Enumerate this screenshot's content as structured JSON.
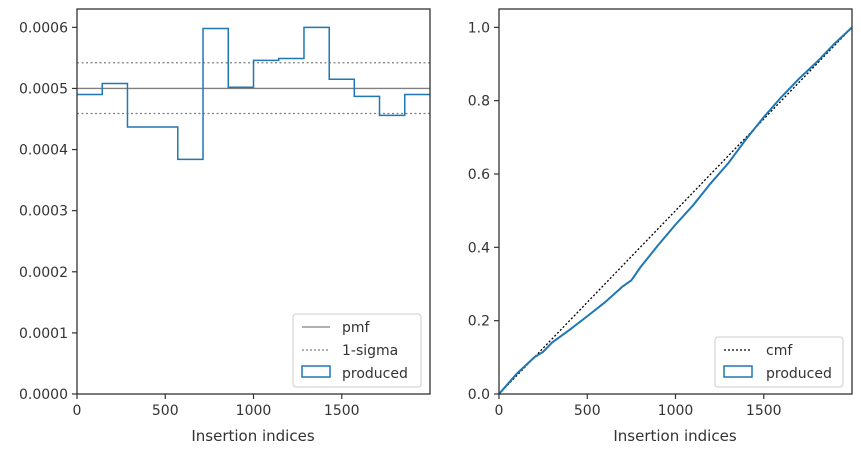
{
  "colors": {
    "produced": "#1f77b4",
    "pmf": "#808080",
    "sigma": "#808080",
    "cmf": "#000000",
    "axes": "#333333"
  },
  "chart_data": [
    {
      "type": "step",
      "xlabel": "Insertion indices",
      "ylabel": "",
      "xlim": [
        0,
        2000
      ],
      "ylim": [
        0,
        0.00063
      ],
      "xticks": [
        0,
        500,
        1000,
        1500
      ],
      "xtick_labels": [
        "0",
        "500",
        "1000",
        "1500"
      ],
      "yticks": [
        0,
        0.0001,
        0.0002,
        0.0003,
        0.0004,
        0.0005,
        0.0006
      ],
      "ytick_labels": [
        "0.0000",
        "0.0001",
        "0.0002",
        "0.0003",
        "0.0004",
        "0.0005",
        "0.0006"
      ],
      "legend_location": "lower-right",
      "series": [
        {
          "name": "pmf",
          "style": "solid",
          "y": 0.0005
        },
        {
          "name": "1-sigma",
          "style": "dotted",
          "y": [
            0.000459,
            0.000542
          ]
        },
        {
          "name": "produced",
          "style": "step",
          "bin_edges": [
            0,
            143,
            286,
            429,
            571,
            714,
            857,
            1000,
            1143,
            1286,
            1429,
            1571,
            1714,
            1857,
            2000
          ],
          "values": [
            0.00049,
            0.000508,
            0.000437,
            0.000437,
            0.000384,
            0.000598,
            0.000502,
            0.000546,
            0.000549,
            0.0006,
            0.000515,
            0.000487,
            0.000456,
            0.00049
          ]
        }
      ]
    },
    {
      "type": "line",
      "xlabel": "Insertion indices",
      "ylabel": "",
      "xlim": [
        0,
        2000
      ],
      "ylim": [
        0,
        1.05
      ],
      "xticks": [
        0,
        500,
        1000,
        1500
      ],
      "xtick_labels": [
        "0",
        "500",
        "1000",
        "1500"
      ],
      "yticks": [
        0,
        0.2,
        0.4,
        0.6,
        0.8,
        1.0
      ],
      "ytick_labels": [
        "0.0",
        "0.2",
        "0.4",
        "0.6",
        "0.8",
        "1.0"
      ],
      "legend_location": "lower-right",
      "series": [
        {
          "name": "cmf",
          "style": "dotted",
          "x": [
            0,
            2000
          ],
          "y": [
            0,
            1.0
          ]
        },
        {
          "name": "produced",
          "style": "solid",
          "x": [
            0,
            100,
            200,
            250,
            300,
            400,
            500,
            600,
            700,
            750,
            800,
            900,
            1000,
            1100,
            1200,
            1300,
            1400,
            1500,
            1600,
            1700,
            1800,
            1900,
            2000
          ],
          "y": [
            0,
            0.055,
            0.1,
            0.115,
            0.14,
            0.175,
            0.212,
            0.25,
            0.293,
            0.31,
            0.345,
            0.405,
            0.462,
            0.515,
            0.575,
            0.63,
            0.695,
            0.755,
            0.81,
            0.86,
            0.905,
            0.955,
            1.0
          ]
        }
      ]
    }
  ]
}
